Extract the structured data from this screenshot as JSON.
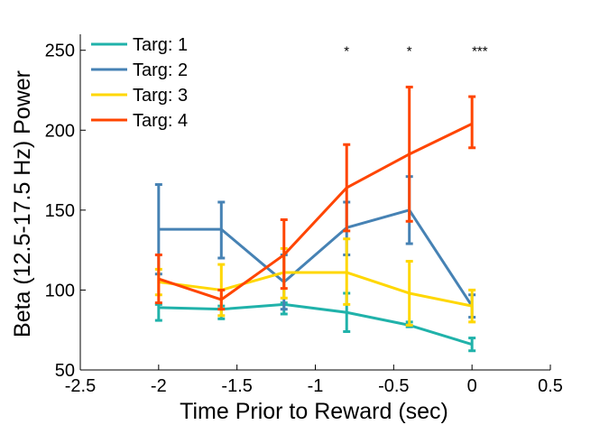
{
  "chart_data": {
    "type": "line",
    "xlabel": "Time Prior to Reward (sec)",
    "ylabel": "Beta (12.5-17.5 Hz) Power",
    "xlim": [
      -2.5,
      0.5
    ],
    "ylim": [
      50,
      260
    ],
    "xticks": [
      -2.5,
      -2,
      -1.5,
      -1,
      -0.5,
      0,
      0.5
    ],
    "xtick_labels": [
      "-2.5",
      "-2",
      "-1.5",
      "-1",
      "-0.5",
      "0",
      "0.5"
    ],
    "yticks": [
      50,
      100,
      150,
      200,
      250
    ],
    "ytick_labels": [
      "50",
      "100",
      "150",
      "200",
      "250"
    ],
    "grid": false,
    "legend_position": "top-left",
    "x": [
      -2,
      -1.6,
      -1.2,
      -0.8,
      -0.4,
      0
    ],
    "series": [
      {
        "name": "Targ: 1",
        "color": "#20b2aa",
        "values": [
          89,
          88,
          91,
          86,
          78,
          66
        ],
        "err_low": [
          81,
          82,
          85,
          74,
          77,
          62
        ],
        "err_high": [
          91,
          90,
          92,
          98,
          80,
          70
        ]
      },
      {
        "name": "Targ: 2",
        "color": "#4682b4",
        "values": [
          138,
          138,
          105,
          139,
          150,
          90
        ],
        "err_low": [
          110,
          120,
          88,
          122,
          129,
          83
        ],
        "err_high": [
          166,
          155,
          122,
          155,
          171,
          97
        ]
      },
      {
        "name": "Targ: 3",
        "color": "#ffd700",
        "values": [
          105,
          100,
          111,
          111,
          98,
          90
        ],
        "err_low": [
          97,
          84,
          95,
          91,
          78,
          80
        ],
        "err_high": [
          113,
          116,
          126,
          132,
          118,
          100
        ]
      },
      {
        "name": "Targ: 4",
        "color": "#ff4500",
        "values": [
          107,
          94,
          122,
          164,
          185,
          204
        ],
        "err_low": [
          92,
          88,
          101,
          137,
          143,
          189
        ],
        "err_high": [
          122,
          100,
          144,
          191,
          227,
          221
        ]
      }
    ],
    "annotations": [
      {
        "x": -0.8,
        "y": 250,
        "text": "*"
      },
      {
        "x": -0.4,
        "y": 250,
        "text": "*"
      },
      {
        "x": 0.05,
        "y": 250,
        "text": "***"
      }
    ]
  }
}
